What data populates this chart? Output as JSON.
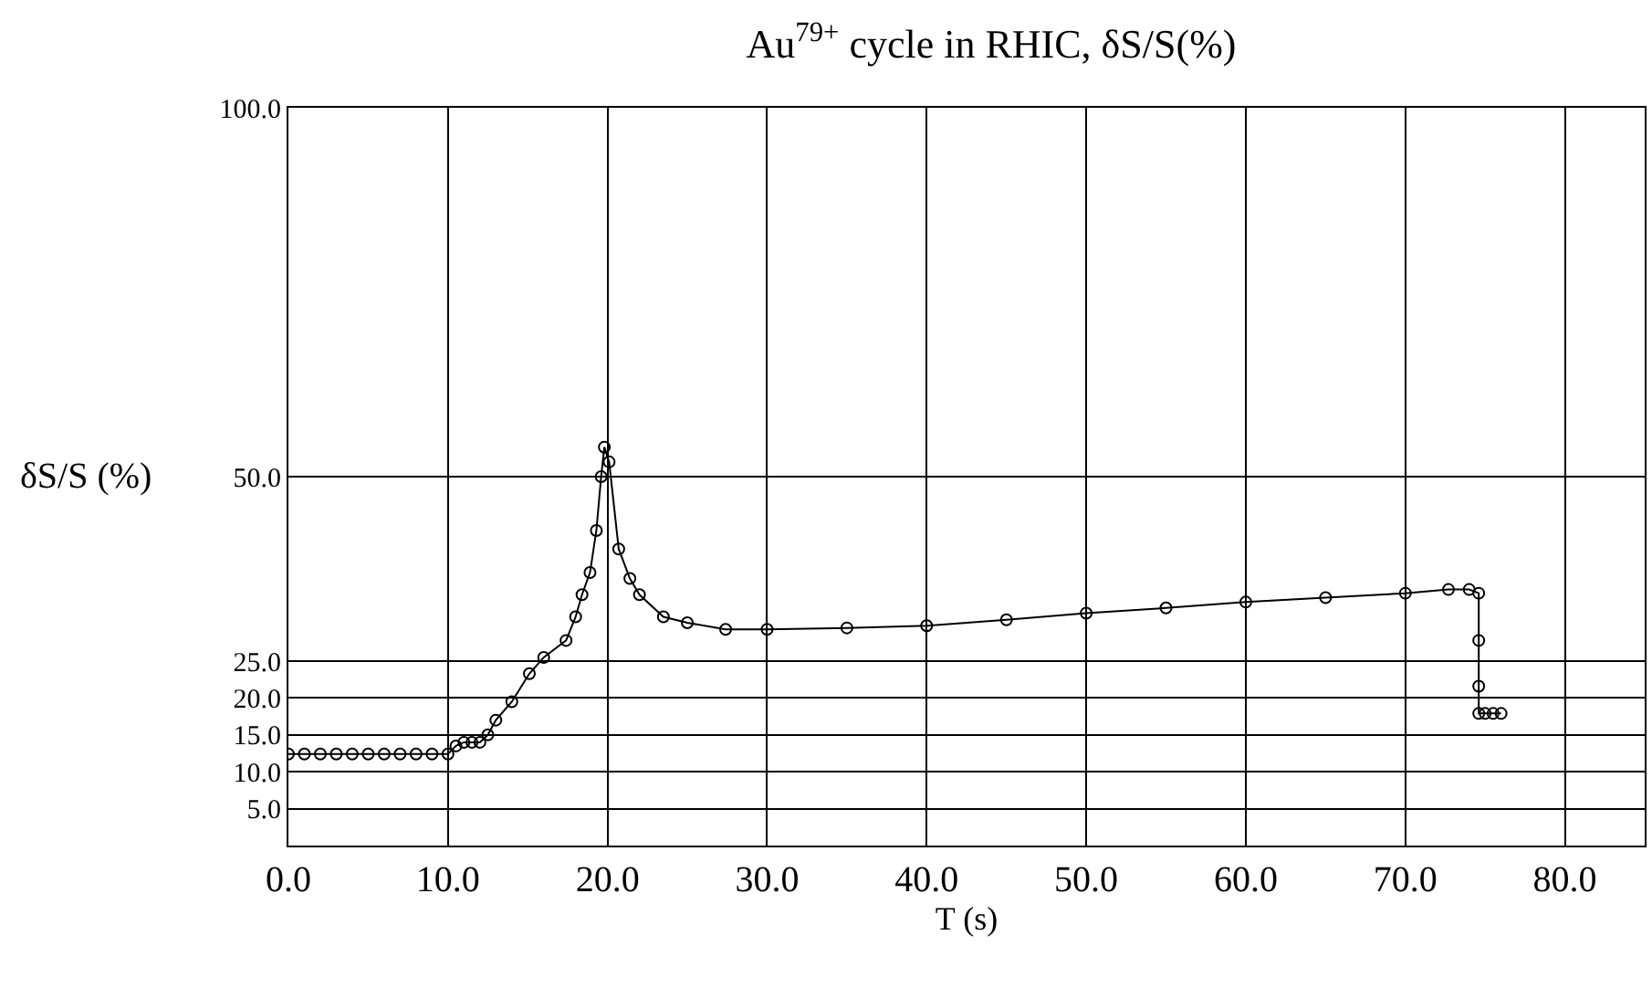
{
  "chart_data": {
    "type": "line",
    "title": "Au$^{79+}$ cycle in RHIC, δS/S(%)",
    "xlabel": "T (s)",
    "ylabel": "δS/S (%)",
    "x": [
      0,
      1,
      2,
      3,
      4,
      5,
      6,
      7,
      8,
      9,
      10,
      10.5,
      11,
      11.5,
      12,
      12.5,
      13,
      14,
      15.1,
      16,
      17.4,
      18,
      18.4,
      18.9,
      19.3,
      19.6,
      19.8,
      20.1,
      20.7,
      21.4,
      22,
      23.5,
      25,
      27.4,
      30,
      35,
      40,
      45,
      50,
      55,
      60,
      65,
      70,
      72.7,
      74,
      74.6,
      74.6,
      74.6,
      74.6,
      75,
      75.5,
      76
    ],
    "series": [
      {
        "color": "#000000",
        "values": [
          12.4,
          12.4,
          12.4,
          12.4,
          12.4,
          12.4,
          12.4,
          12.4,
          12.4,
          12.4,
          12.4,
          13.5,
          14,
          14,
          14,
          15,
          17,
          19.5,
          23.3,
          25.5,
          27.8,
          31,
          34,
          37,
          42.7,
          50,
          54,
          52,
          40.2,
          36.2,
          34,
          31,
          30.2,
          29.3,
          29.3,
          29.5,
          29.8,
          30.6,
          31.5,
          32.2,
          33,
          33.6,
          34.2,
          34.7,
          34.7,
          34.2,
          27.8,
          21.6,
          17.9,
          17.9,
          17.9,
          17.9
        ]
      }
    ],
    "xlim": [
      0,
      85
    ],
    "ylim": [
      0,
      100
    ],
    "xticks": [
      {
        "value": 0,
        "label": "0.0"
      },
      {
        "value": 10,
        "label": "10.0"
      },
      {
        "value": 20,
        "label": "20.0"
      },
      {
        "value": 30,
        "label": "30.0"
      },
      {
        "value": 40,
        "label": "40.0"
      },
      {
        "value": 50,
        "label": "50.0"
      },
      {
        "value": 60,
        "label": "60.0"
      },
      {
        "value": 70,
        "label": "70.0"
      },
      {
        "value": 80,
        "label": "80.0"
      }
    ],
    "yticks": [
      {
        "value": 5,
        "label": "5.0"
      },
      {
        "value": 10,
        "label": "10.0"
      },
      {
        "value": 15,
        "label": "15.0"
      },
      {
        "value": 20,
        "label": "20.0"
      },
      {
        "value": 25,
        "label": "25.0"
      },
      {
        "value": 50,
        "label": "50.0"
      },
      {
        "value": 100,
        "label": "100.0"
      }
    ],
    "grid": true,
    "marker": "circle",
    "line_style": "solid"
  }
}
